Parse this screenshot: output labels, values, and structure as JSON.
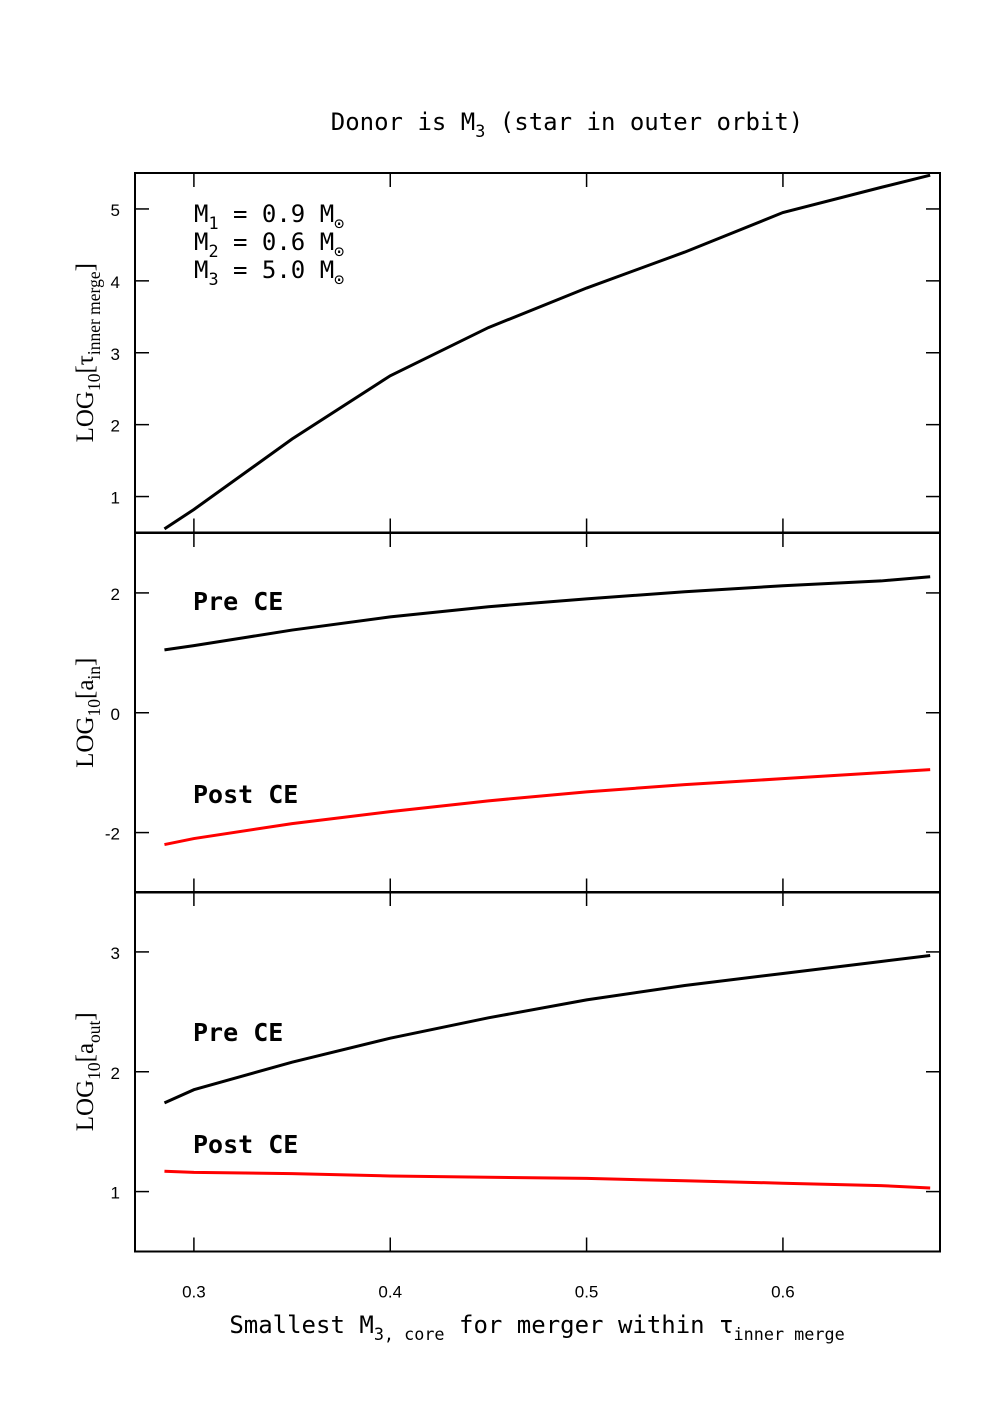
{
  "chart_data": [
    {
      "type": "line",
      "title": [
        {
          "t": "Donor is M"
        },
        {
          "t": "3",
          "sub": true
        },
        {
          "t": " (star in outer orbit)"
        }
      ],
      "ylabel": [
        {
          "t": "LOG"
        },
        {
          "t": "10",
          "sub": true
        },
        {
          "t": "[τ"
        },
        {
          "t": "inner merge",
          "sub": true
        },
        {
          "t": "]"
        }
      ],
      "annotations": [
        [
          {
            "t": "M"
          },
          {
            "t": "1",
            "sub": true
          },
          {
            "t": " = 0.9 M"
          },
          {
            "t": "⊙",
            "sub": true
          }
        ],
        [
          {
            "t": "M"
          },
          {
            "t": "2",
            "sub": true
          },
          {
            "t": " = 0.6 M"
          },
          {
            "t": "⊙",
            "sub": true
          }
        ],
        [
          {
            "t": "M"
          },
          {
            "t": "3",
            "sub": true
          },
          {
            "t": " = 5.0 M"
          },
          {
            "t": "⊙",
            "sub": true
          }
        ]
      ],
      "x": [
        0.285,
        0.3,
        0.35,
        0.4,
        0.45,
        0.5,
        0.55,
        0.6,
        0.65,
        0.675
      ],
      "series": [
        {
          "color": "#000000",
          "values": [
            0.55,
            0.82,
            1.8,
            2.68,
            3.35,
            3.9,
            4.4,
            4.95,
            5.3,
            5.47
          ]
        }
      ],
      "xlim": [
        0.27,
        0.68
      ],
      "xticks": [
        0.3,
        0.4,
        0.5,
        0.6
      ],
      "show_xtick_labels": false,
      "ylim": [
        0.5,
        5.5
      ],
      "yticks": [
        1,
        2,
        3,
        4,
        5
      ]
    },
    {
      "type": "line",
      "ylabel": [
        {
          "t": "LOG"
        },
        {
          "t": "10",
          "sub": true
        },
        {
          "t": "[a"
        },
        {
          "t": "in",
          "sub": true
        },
        {
          "t": "]"
        }
      ],
      "x": [
        0.285,
        0.3,
        0.35,
        0.4,
        0.45,
        0.5,
        0.55,
        0.6,
        0.65,
        0.675
      ],
      "series": [
        {
          "name": "Pre CE",
          "color": "#000000",
          "values": [
            1.05,
            1.12,
            1.38,
            1.6,
            1.77,
            1.9,
            2.02,
            2.12,
            2.2,
            2.27
          ]
        },
        {
          "name": "Post CE",
          "color": "#ff0000",
          "values": [
            -2.2,
            -2.1,
            -1.85,
            -1.65,
            -1.47,
            -1.32,
            -1.2,
            -1.1,
            -1.0,
            -0.95
          ]
        }
      ],
      "xlim": [
        0.27,
        0.68
      ],
      "xticks": [
        0.3,
        0.4,
        0.5,
        0.6
      ],
      "show_xtick_labels": false,
      "ylim": [
        -3,
        3
      ],
      "yticks": [
        -2,
        0,
        2
      ]
    },
    {
      "type": "line",
      "ylabel": [
        {
          "t": "LOG"
        },
        {
          "t": "10",
          "sub": true
        },
        {
          "t": "[a"
        },
        {
          "t": "out",
          "sub": true
        },
        {
          "t": "]"
        }
      ],
      "xlabel": [
        {
          "t": "Smallest M"
        },
        {
          "t": "3, core",
          "sub": true
        },
        {
          "t": " for merger within τ"
        },
        {
          "t": "inner merge",
          "sub": true
        }
      ],
      "x": [
        0.285,
        0.3,
        0.35,
        0.4,
        0.45,
        0.5,
        0.55,
        0.6,
        0.65,
        0.675
      ],
      "series": [
        {
          "name": "Pre CE",
          "color": "#000000",
          "values": [
            1.74,
            1.85,
            2.08,
            2.28,
            2.45,
            2.6,
            2.72,
            2.82,
            2.92,
            2.97
          ]
        },
        {
          "name": "Post CE",
          "color": "#ff0000",
          "values": [
            1.17,
            1.16,
            1.15,
            1.13,
            1.12,
            1.11,
            1.09,
            1.07,
            1.05,
            1.03
          ]
        }
      ],
      "xlim": [
        0.27,
        0.68
      ],
      "xticks": [
        0.3,
        0.4,
        0.5,
        0.6
      ],
      "show_xtick_labels": true,
      "ylim": [
        0.5,
        3.5
      ],
      "yticks": [
        1,
        2,
        3
      ]
    }
  ]
}
